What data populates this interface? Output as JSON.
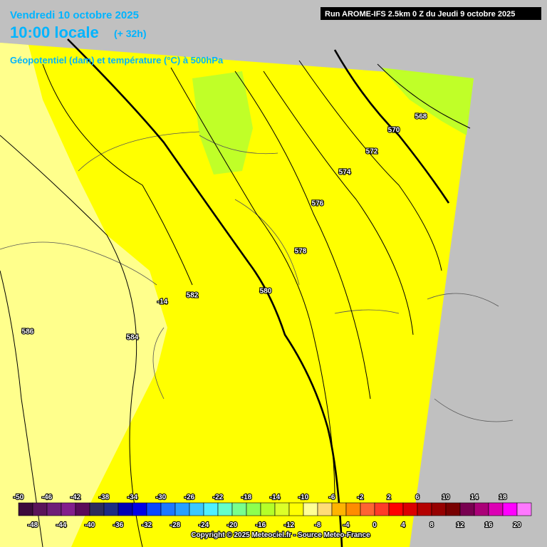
{
  "header": {
    "date": "Vendredi 10 octobre 2025",
    "time": "10:00 locale",
    "lead": "(+ 32h)",
    "subtitle": "Géopotentiel (dam) et température (°C) à 500hPa",
    "run": "Run AROME-IFS 2.5km 0 Z du Jeudi 9 octobre 2025"
  },
  "contour_labels": [
    568,
    570,
    572,
    574,
    576,
    578,
    580,
    582,
    584,
    586,
    -14
  ],
  "colorbar": {
    "ticks": [
      -50,
      -48,
      -46,
      -44,
      -42,
      -40,
      -38,
      -36,
      -34,
      -32,
      -30,
      -28,
      -26,
      -24,
      -22,
      -20,
      -18,
      -16,
      -14,
      -12,
      -10,
      -8,
      -6,
      -4,
      -2,
      0,
      2,
      4,
      6,
      8,
      10,
      12,
      14,
      16,
      18,
      20
    ],
    "colors": [
      "#3c0a3c",
      "#5a145a",
      "#6e1e78",
      "#821e8c",
      "#5a0a5a",
      "#2d2d5a",
      "#1e2d82",
      "#0000b4",
      "#0000e6",
      "#0a46ff",
      "#1e78ff",
      "#28a0ff",
      "#3cc8ff",
      "#50f0ff",
      "#64ffc8",
      "#78ff8c",
      "#8cff50",
      "#b4ff28",
      "#dcff28",
      "#ffff00",
      "#ffff96",
      "#ffdc78",
      "#ffb400",
      "#ff8c00",
      "#ff6432",
      "#ff3c28",
      "#ff0000",
      "#dc0000",
      "#b40000",
      "#960000",
      "#780000",
      "#780050",
      "#aa0078",
      "#dc00b4",
      "#ff00ff",
      "#ff78ff"
    ]
  },
  "footer": "Copyright © 2025 Meteociel.fr - Source Meteo-France"
}
